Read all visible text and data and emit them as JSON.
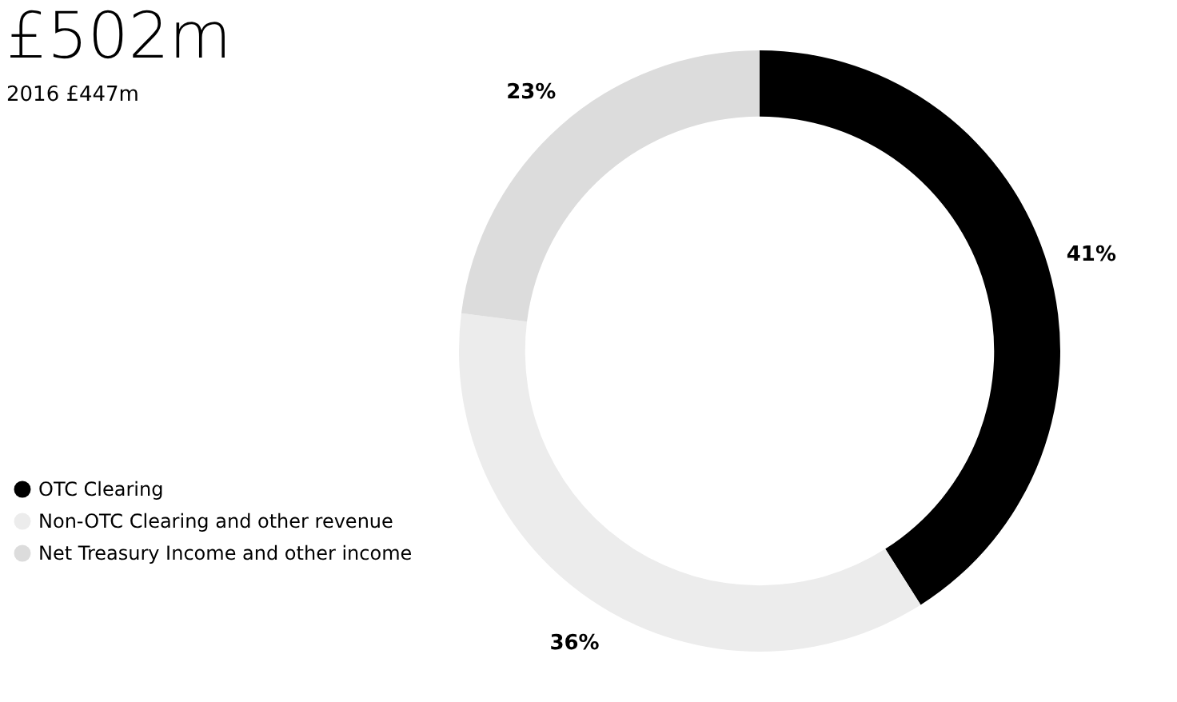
{
  "chart_data": {
    "type": "donut",
    "title": "£502m",
    "subtitle": "2016 £447m",
    "categories": [
      "OTC Clearing",
      "Non-OTC Clearing and other revenue",
      "Net Treasury Income and other income"
    ],
    "values": [
      41,
      36,
      23
    ],
    "colors": [
      "#000000",
      "#ececec",
      "#dcdcdc"
    ],
    "value_labels": [
      "41%",
      "36%",
      "23%"
    ],
    "legend": "bottom left"
  }
}
